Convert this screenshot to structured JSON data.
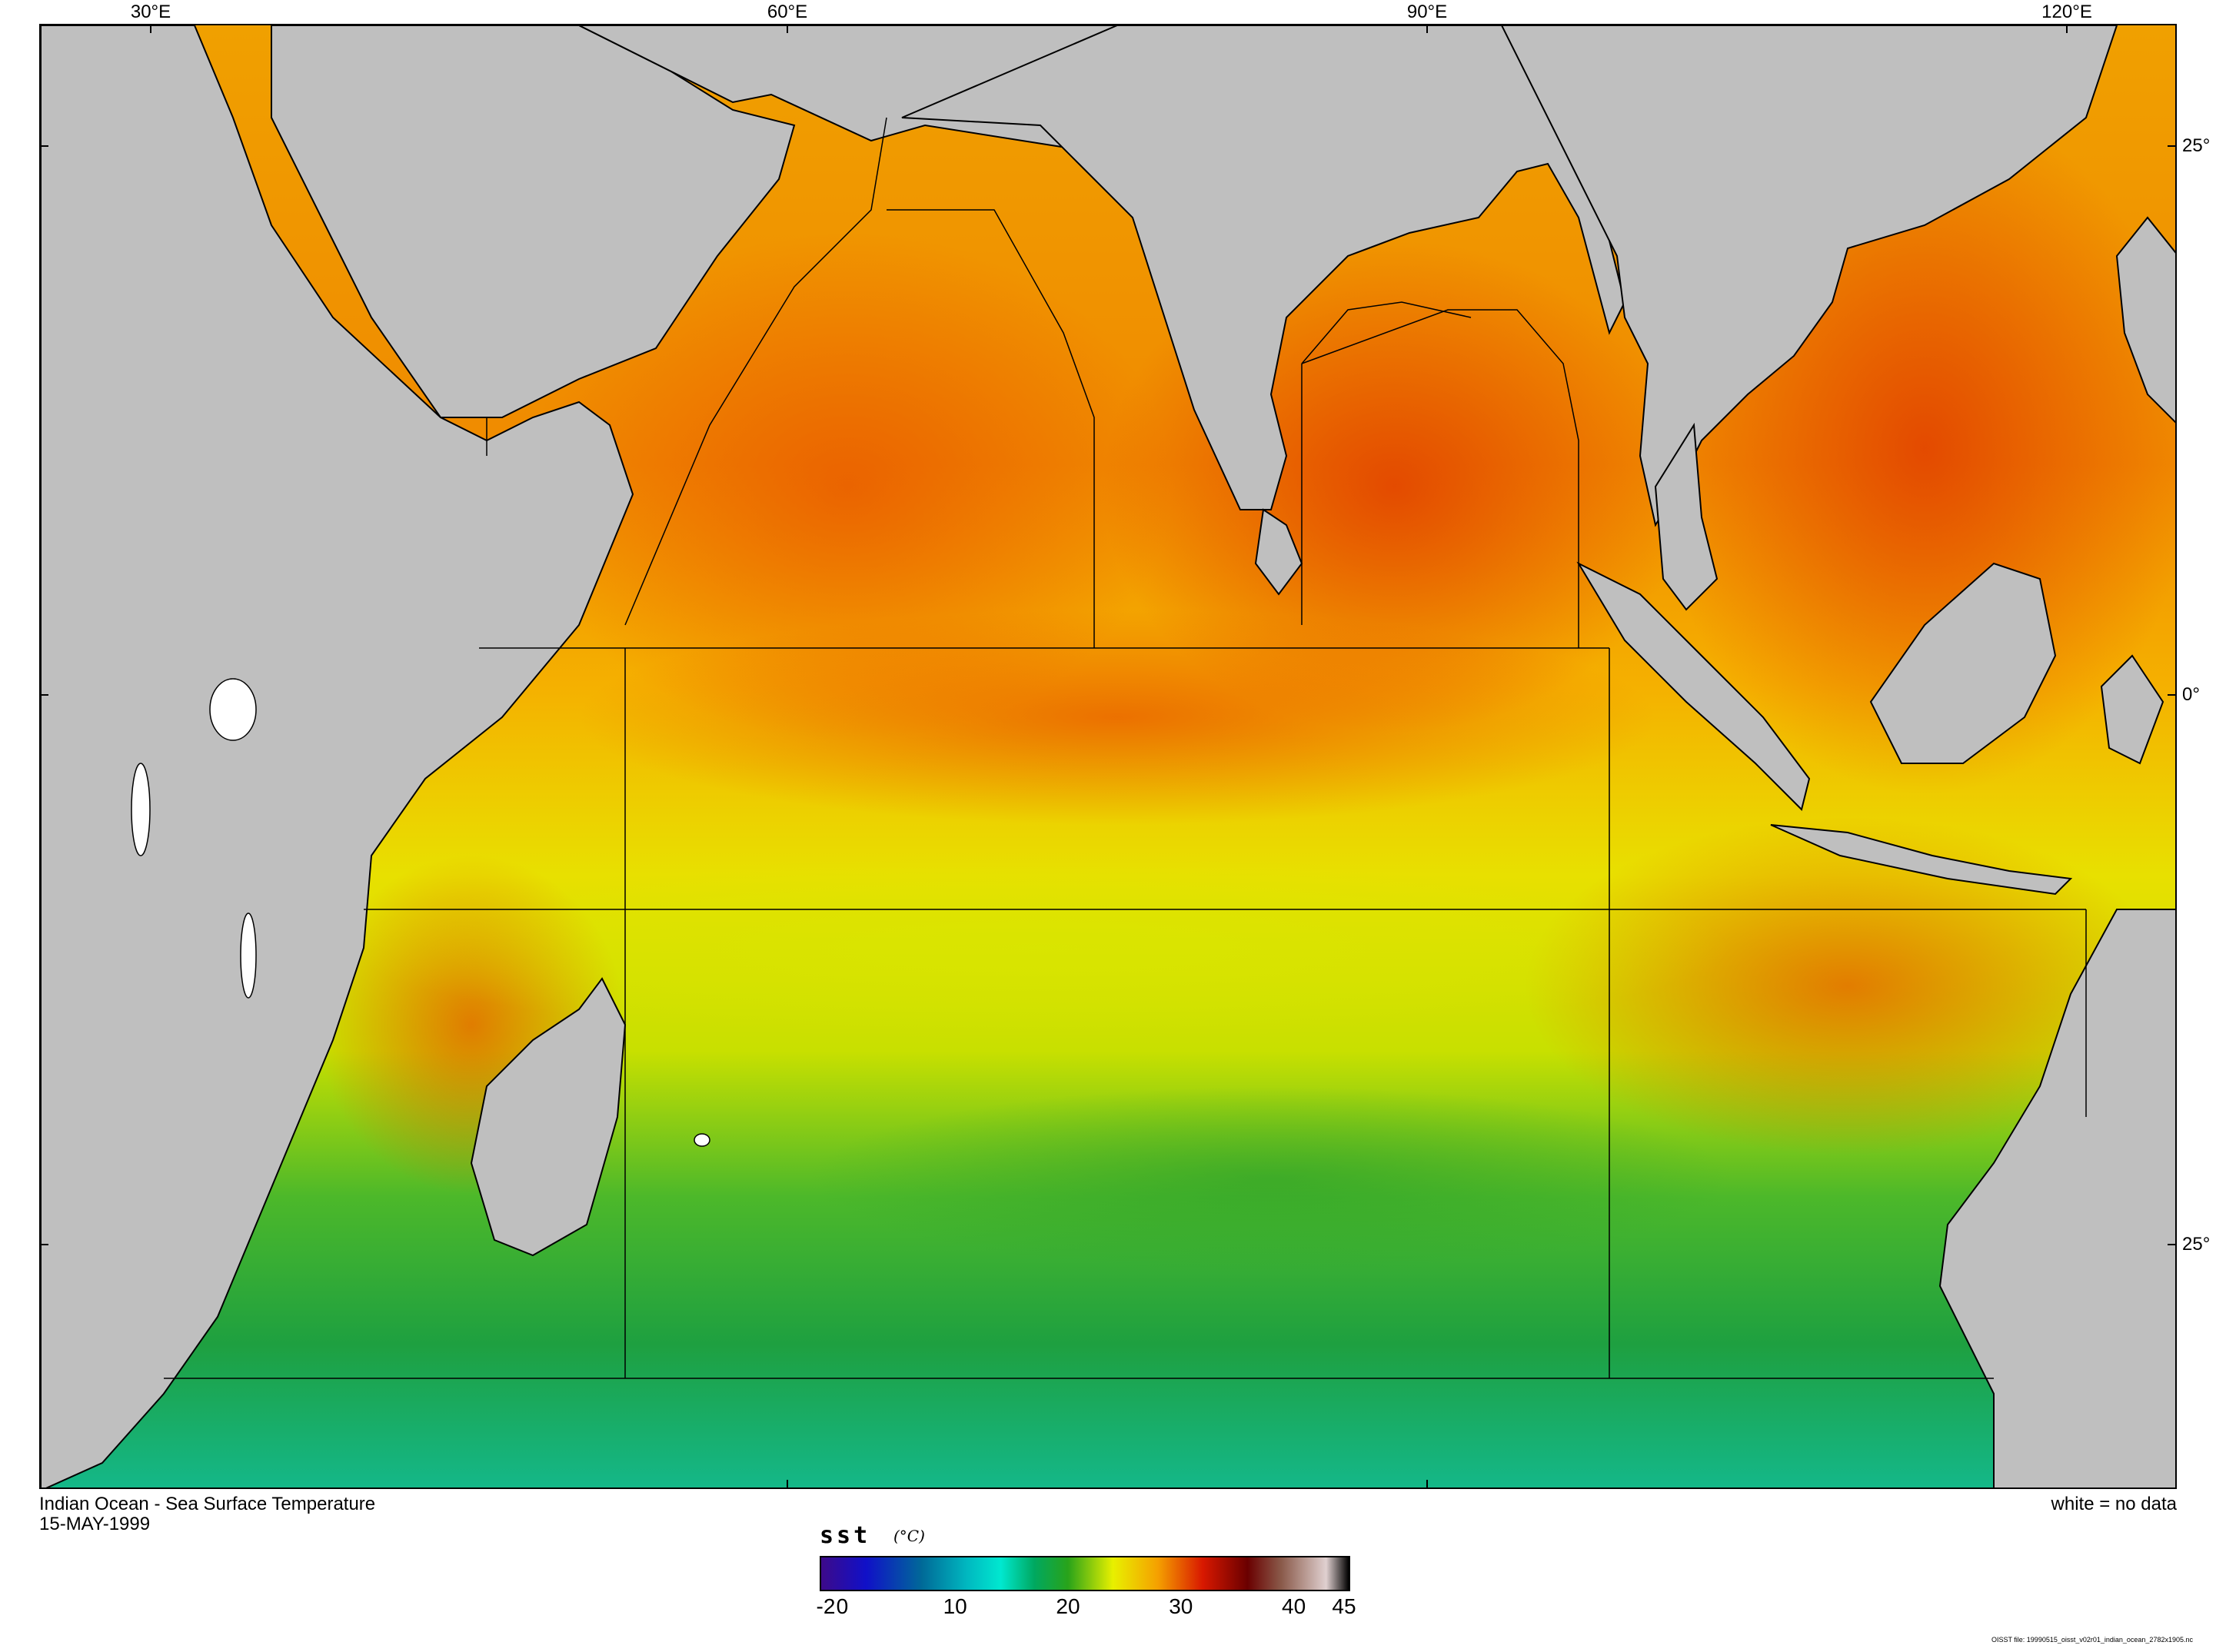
{
  "map": {
    "lon_labels": [
      "30°E",
      "60°E",
      "90°E",
      "120°E"
    ],
    "lat_labels": [
      "25°",
      "0°",
      "25°"
    ],
    "background_color": "#bfbfbf",
    "basin_outline_color": "#000000"
  },
  "captions": {
    "title": "Indian Ocean - Sea Surface Temperature",
    "date": "15-MAY-1999",
    "no_data": "white = no data",
    "file": "OISST file: 19990515_oisst_v02r01_indian_ocean_2782x1905.nc"
  },
  "colorbar": {
    "variable": "sst",
    "unit": "(°C)",
    "min": -2,
    "max": 45,
    "tick_labels": [
      "-2",
      "0",
      "10",
      "20",
      "30",
      "40",
      "45"
    ],
    "tick_values": [
      -2,
      0,
      10,
      20,
      30,
      40,
      45
    ],
    "color_stops": [
      {
        "value": -2,
        "color": "#3d0a8a"
      },
      {
        "value": 2,
        "color": "#1010c8"
      },
      {
        "value": 7,
        "color": "#006a98"
      },
      {
        "value": 11,
        "color": "#00b8c0"
      },
      {
        "value": 14,
        "color": "#00e8d0"
      },
      {
        "value": 17,
        "color": "#00a860"
      },
      {
        "value": 20,
        "color": "#29a31a"
      },
      {
        "value": 24,
        "color": "#e8f000"
      },
      {
        "value": 28,
        "color": "#f5a000"
      },
      {
        "value": 32,
        "color": "#d81800"
      },
      {
        "value": 36,
        "color": "#6a0000"
      },
      {
        "value": 39,
        "color": "#8a5a4a"
      },
      {
        "value": 43,
        "color": "#e0d0d0"
      },
      {
        "value": 45,
        "color": "#000000"
      }
    ]
  }
}
